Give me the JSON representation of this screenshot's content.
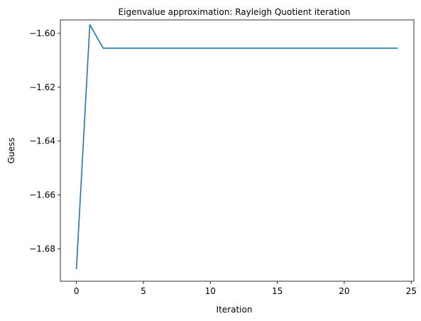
{
  "chart_data": {
    "type": "line",
    "title": "Eigenvalue approximation: Rayleigh Quotient iteration",
    "xlabel": "Iteration",
    "ylabel": "Guess",
    "xlim": [
      -1.2,
      25.2
    ],
    "ylim": [
      -1.692,
      -1.595
    ],
    "xticks": [
      0,
      5,
      10,
      15,
      20,
      25
    ],
    "yticks": [
      -1.68,
      -1.66,
      -1.64,
      -1.62,
      -1.6
    ],
    "xtick_labels": [
      "0",
      "5",
      "10",
      "15",
      "20",
      "25"
    ],
    "ytick_labels": [
      "−1.68",
      "−1.66",
      "−1.64",
      "−1.62",
      "−1.60"
    ],
    "grid": false,
    "series": [
      {
        "color": "#1f77b4",
        "x": [
          0,
          1,
          2,
          3,
          4,
          5,
          6,
          7,
          8,
          9,
          10,
          11,
          12,
          13,
          14,
          15,
          16,
          17,
          18,
          19,
          20,
          21,
          22,
          23,
          24
        ],
        "y": [
          -1.6875,
          -1.5968,
          -1.6055,
          -1.6055,
          -1.6055,
          -1.6055,
          -1.6055,
          -1.6055,
          -1.6055,
          -1.6055,
          -1.6055,
          -1.6055,
          -1.6055,
          -1.6055,
          -1.6055,
          -1.6055,
          -1.6055,
          -1.6055,
          -1.6055,
          -1.6055,
          -1.6055,
          -1.6055,
          -1.6055,
          -1.6055,
          -1.6055
        ]
      }
    ]
  }
}
